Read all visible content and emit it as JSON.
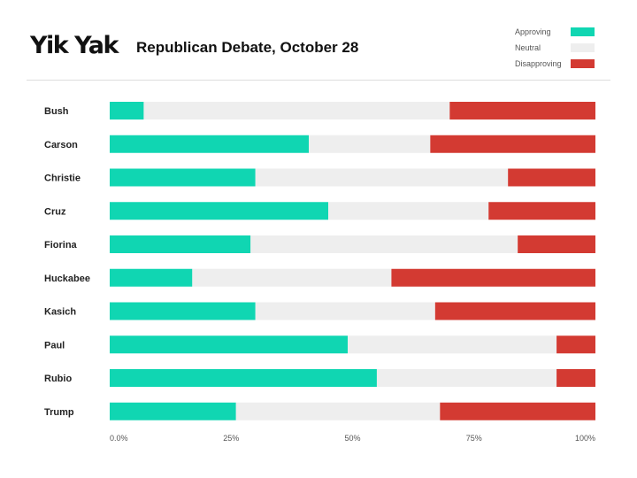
{
  "header": {
    "logo_text": "Yik Yak",
    "title": "Republican Debate, October 28"
  },
  "legend": [
    {
      "label": "Approving",
      "color": "#10d6b2"
    },
    {
      "label": "Neutral",
      "color": "#eeeeee"
    },
    {
      "label": "Disapproving",
      "color": "#d33a32"
    }
  ],
  "chart_data": {
    "type": "bar",
    "orientation": "horizontal",
    "stacked": true,
    "title": "Republican Debate, October 28",
    "categories": [
      "Bush",
      "Carson",
      "Christie",
      "Cruz",
      "Fiorina",
      "Huckabee",
      "Kasich",
      "Paul",
      "Rubio",
      "Trump"
    ],
    "series": [
      {
        "name": "Approving",
        "color": "#10d6b2",
        "values": [
          7,
          41,
          30,
          45,
          29,
          17,
          30,
          49,
          55,
          26
        ]
      },
      {
        "name": "Neutral",
        "color": "#eeeeee",
        "values": [
          63,
          25,
          52,
          33,
          55,
          41,
          37,
          43,
          37,
          42
        ]
      },
      {
        "name": "Disapproving",
        "color": "#d33a32",
        "values": [
          30,
          34,
          18,
          22,
          16,
          42,
          33,
          8,
          8,
          32
        ]
      }
    ],
    "xlim": [
      0,
      100
    ],
    "xticks": [
      "0.0%",
      "25%",
      "50%",
      "75%",
      "100%"
    ],
    "grid": false,
    "legend_position": "top-right"
  }
}
